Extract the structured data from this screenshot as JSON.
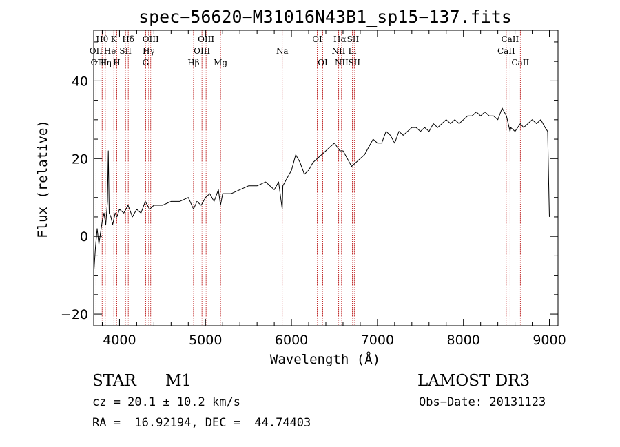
{
  "chart_data": {
    "type": "line",
    "title": "spec−56620−M31016N43B1_sp15−137.fits",
    "xlabel": "Wavelength (Å)",
    "ylabel": "Flux (relative)",
    "xlim": [
      3700,
      9100
    ],
    "ylim": [
      -23,
      53
    ],
    "xticks": [
      4000,
      5000,
      6000,
      7000,
      8000,
      9000
    ],
    "xtick_labels": [
      "4000",
      "5000",
      "6000",
      "7000",
      "8000",
      "9000"
    ],
    "yticks": [
      -20,
      0,
      20,
      40
    ],
    "ytick_labels": [
      "−20",
      "0",
      "20",
      "40"
    ],
    "series": [
      {
        "name": "flux",
        "x": [
          3700,
          3720,
          3740,
          3760,
          3780,
          3800,
          3820,
          3840,
          3860,
          3870,
          3880,
          3900,
          3920,
          3950,
          3970,
          4000,
          4050,
          4100,
          4150,
          4200,
          4250,
          4300,
          4350,
          4400,
          4500,
          4600,
          4700,
          4800,
          4861,
          4900,
          4950,
          5000,
          5050,
          5100,
          5150,
          5175,
          5200,
          5300,
          5400,
          5500,
          5600,
          5700,
          5800,
          5850,
          5893,
          5900,
          5950,
          6000,
          6050,
          6100,
          6150,
          6200,
          6250,
          6300,
          6350,
          6400,
          6450,
          6500,
          6563,
          6600,
          6650,
          6700,
          6750,
          6800,
          6850,
          6900,
          6950,
          7000,
          7050,
          7100,
          7150,
          7200,
          7250,
          7300,
          7350,
          7400,
          7450,
          7500,
          7550,
          7600,
          7650,
          7700,
          7750,
          7800,
          7850,
          7900,
          7950,
          8000,
          8050,
          8100,
          8150,
          8200,
          8250,
          8300,
          8350,
          8400,
          8450,
          8500,
          8542,
          8550,
          8600,
          8662,
          8700,
          8750,
          8800,
          8850,
          8900,
          8950,
          8980,
          8995,
          9000
        ],
        "y": [
          -10,
          -3,
          2,
          -2,
          1,
          4,
          6,
          3,
          9,
          22,
          6,
          5,
          3,
          6,
          5,
          7,
          6,
          8,
          5,
          7,
          6,
          9,
          7,
          8,
          8,
          9,
          9,
          10,
          7,
          9,
          8,
          10,
          11,
          9,
          12,
          8,
          11,
          11,
          12,
          13,
          13,
          14,
          12,
          14,
          7,
          13,
          15,
          17,
          21,
          19,
          16,
          17,
          19,
          20,
          21,
          22,
          23,
          24,
          22,
          22,
          20,
          18,
          19,
          20,
          21,
          23,
          25,
          24,
          24,
          27,
          26,
          24,
          27,
          26,
          27,
          28,
          28,
          27,
          28,
          27,
          29,
          28,
          29,
          30,
          29,
          30,
          29,
          30,
          31,
          31,
          32,
          31,
          32,
          31,
          31,
          30,
          33,
          31,
          27,
          28,
          27,
          29,
          28,
          29,
          30,
          29,
          30,
          28,
          27,
          10,
          5
        ]
      }
    ],
    "spectral_lines": [
      {
        "label": "Hθ",
        "wavelength": 3798,
        "row": 1
      },
      {
        "label": "OII",
        "wavelength": 3727,
        "row": 2
      },
      {
        "label": "OIII",
        "wavelength": 3760,
        "row": 3
      },
      {
        "label": "He",
        "wavelength": 3889,
        "row": 2
      },
      {
        "label": "Hη",
        "wavelength": 3835,
        "row": 3
      },
      {
        "label": "K",
        "wavelength": 3934,
        "row": 1
      },
      {
        "label": "SII",
        "wavelength": 4070,
        "row": 2
      },
      {
        "label": "H",
        "wavelength": 3968,
        "row": 3
      },
      {
        "label": "Hδ",
        "wavelength": 4102,
        "row": 1
      },
      {
        "label": "OIII",
        "wavelength": 4363,
        "row": 1
      },
      {
        "label": "Hγ",
        "wavelength": 4340,
        "row": 2
      },
      {
        "label": "G",
        "wavelength": 4304,
        "row": 3
      },
      {
        "label": "OIII",
        "wavelength": 5007,
        "row": 1
      },
      {
        "label": "OIII",
        "wavelength": 4959,
        "row": 2
      },
      {
        "label": "Hβ",
        "wavelength": 4861,
        "row": 3
      },
      {
        "label": "Mg",
        "wavelength": 5175,
        "row": 3
      },
      {
        "label": "Na",
        "wavelength": 5893,
        "row": 2
      },
      {
        "label": "OI",
        "wavelength": 6300,
        "row": 1
      },
      {
        "label": "OI",
        "wavelength": 6364,
        "row": 3
      },
      {
        "label": "Hα",
        "wavelength": 6563,
        "row": 1
      },
      {
        "label": "NII",
        "wavelength": 6548,
        "row": 2
      },
      {
        "label": "NII",
        "wavelength": 6583,
        "row": 3
      },
      {
        "label": "SII",
        "wavelength": 6716,
        "row": 1
      },
      {
        "label": "Li",
        "wavelength": 6708,
        "row": 2
      },
      {
        "label": "SII",
        "wavelength": 6731,
        "row": 3
      },
      {
        "label": "CaII",
        "wavelength": 8542,
        "row": 1
      },
      {
        "label": "CaII",
        "wavelength": 8498,
        "row": 2
      },
      {
        "label": "CaII",
        "wavelength": 8662,
        "row": 3
      }
    ],
    "line_color": "#b40000",
    "series_color": "#000000"
  },
  "info": {
    "object_type": "STAR",
    "subclass": "M1",
    "survey": "LAMOST DR3",
    "cz": "cz = 20.1 ± 10.2 km/s",
    "obs_date": "Obs−Date: 20131123",
    "coords": "RA =  16.92194, DEC =  44.74403"
  }
}
